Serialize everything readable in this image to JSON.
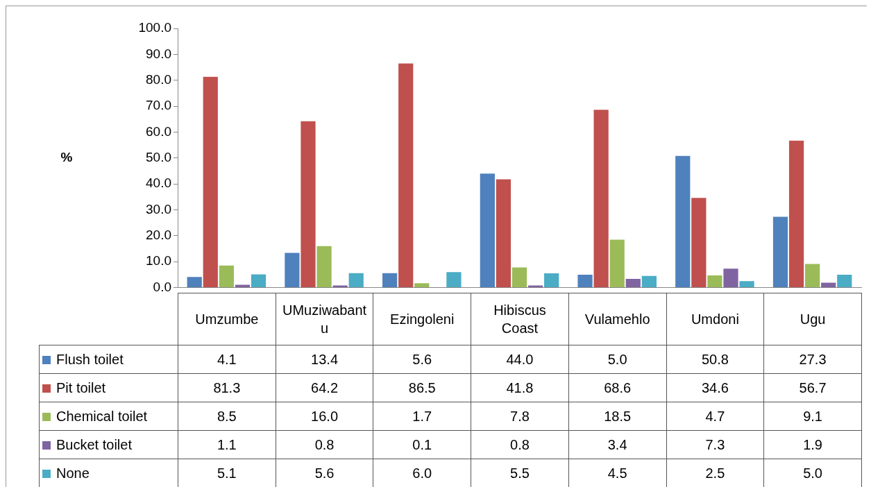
{
  "chart_data": {
    "type": "bar",
    "ylabel": "%",
    "categories": [
      "Umzumbe",
      "UMuziwabantu",
      "Ezingoleni",
      "Hibiscus Coast",
      "Vulamehlo",
      "Umdoni",
      "Ugu"
    ],
    "series": [
      {
        "name": "Flush toilet",
        "color": "#4f81bd",
        "values": [
          4.1,
          13.4,
          5.6,
          44.0,
          5.0,
          50.8,
          27.3
        ],
        "value_labels": [
          "4.1",
          "13.4",
          "5.6",
          "44.0",
          "5.0",
          "50.8",
          "27.3"
        ]
      },
      {
        "name": "Pit toilet",
        "color": "#c0504d",
        "values": [
          81.3,
          64.2,
          86.5,
          41.8,
          68.6,
          34.6,
          56.7
        ],
        "value_labels": [
          "81.3",
          "64.2",
          "86.5",
          "41.8",
          "68.6",
          "34.6",
          "56.7"
        ]
      },
      {
        "name": "Chemical toilet",
        "color": "#9bbb59",
        "values": [
          8.5,
          16.0,
          1.7,
          7.8,
          18.5,
          4.7,
          9.1
        ],
        "value_labels": [
          "8.5",
          "16.0",
          "1.7",
          "7.8",
          "18.5",
          "4.7",
          "9.1"
        ]
      },
      {
        "name": "Bucket toilet",
        "color": "#8064a2",
        "values": [
          1.1,
          0.8,
          0.1,
          0.8,
          3.4,
          7.3,
          1.9
        ],
        "value_labels": [
          "1.1",
          "0.8",
          "0.1",
          "0.8",
          "3.4",
          "7.3",
          "1.9"
        ]
      },
      {
        "name": "None",
        "color": "#4bacc6",
        "values": [
          5.1,
          5.6,
          6.0,
          5.5,
          4.5,
          2.5,
          5.0
        ],
        "value_labels": [
          "5.1",
          "5.6",
          "6.0",
          "5.5",
          "4.5",
          "2.5",
          "5.0"
        ]
      }
    ],
    "ylim": [
      0,
      100
    ],
    "yticks": [
      {
        "value": 0,
        "label": "0.0"
      },
      {
        "value": 10,
        "label": "10.0"
      },
      {
        "value": 20,
        "label": "20.0"
      },
      {
        "value": 30,
        "label": "30.0"
      },
      {
        "value": 40,
        "label": "40.0"
      },
      {
        "value": 50,
        "label": "50.0"
      },
      {
        "value": 60,
        "label": "60.0"
      },
      {
        "value": 70,
        "label": "70.0"
      },
      {
        "value": 80,
        "label": "80.0"
      },
      {
        "value": 90,
        "label": "90.0"
      },
      {
        "value": 100,
        "label": "100.0"
      }
    ],
    "grid": false,
    "legend": "bottom"
  }
}
